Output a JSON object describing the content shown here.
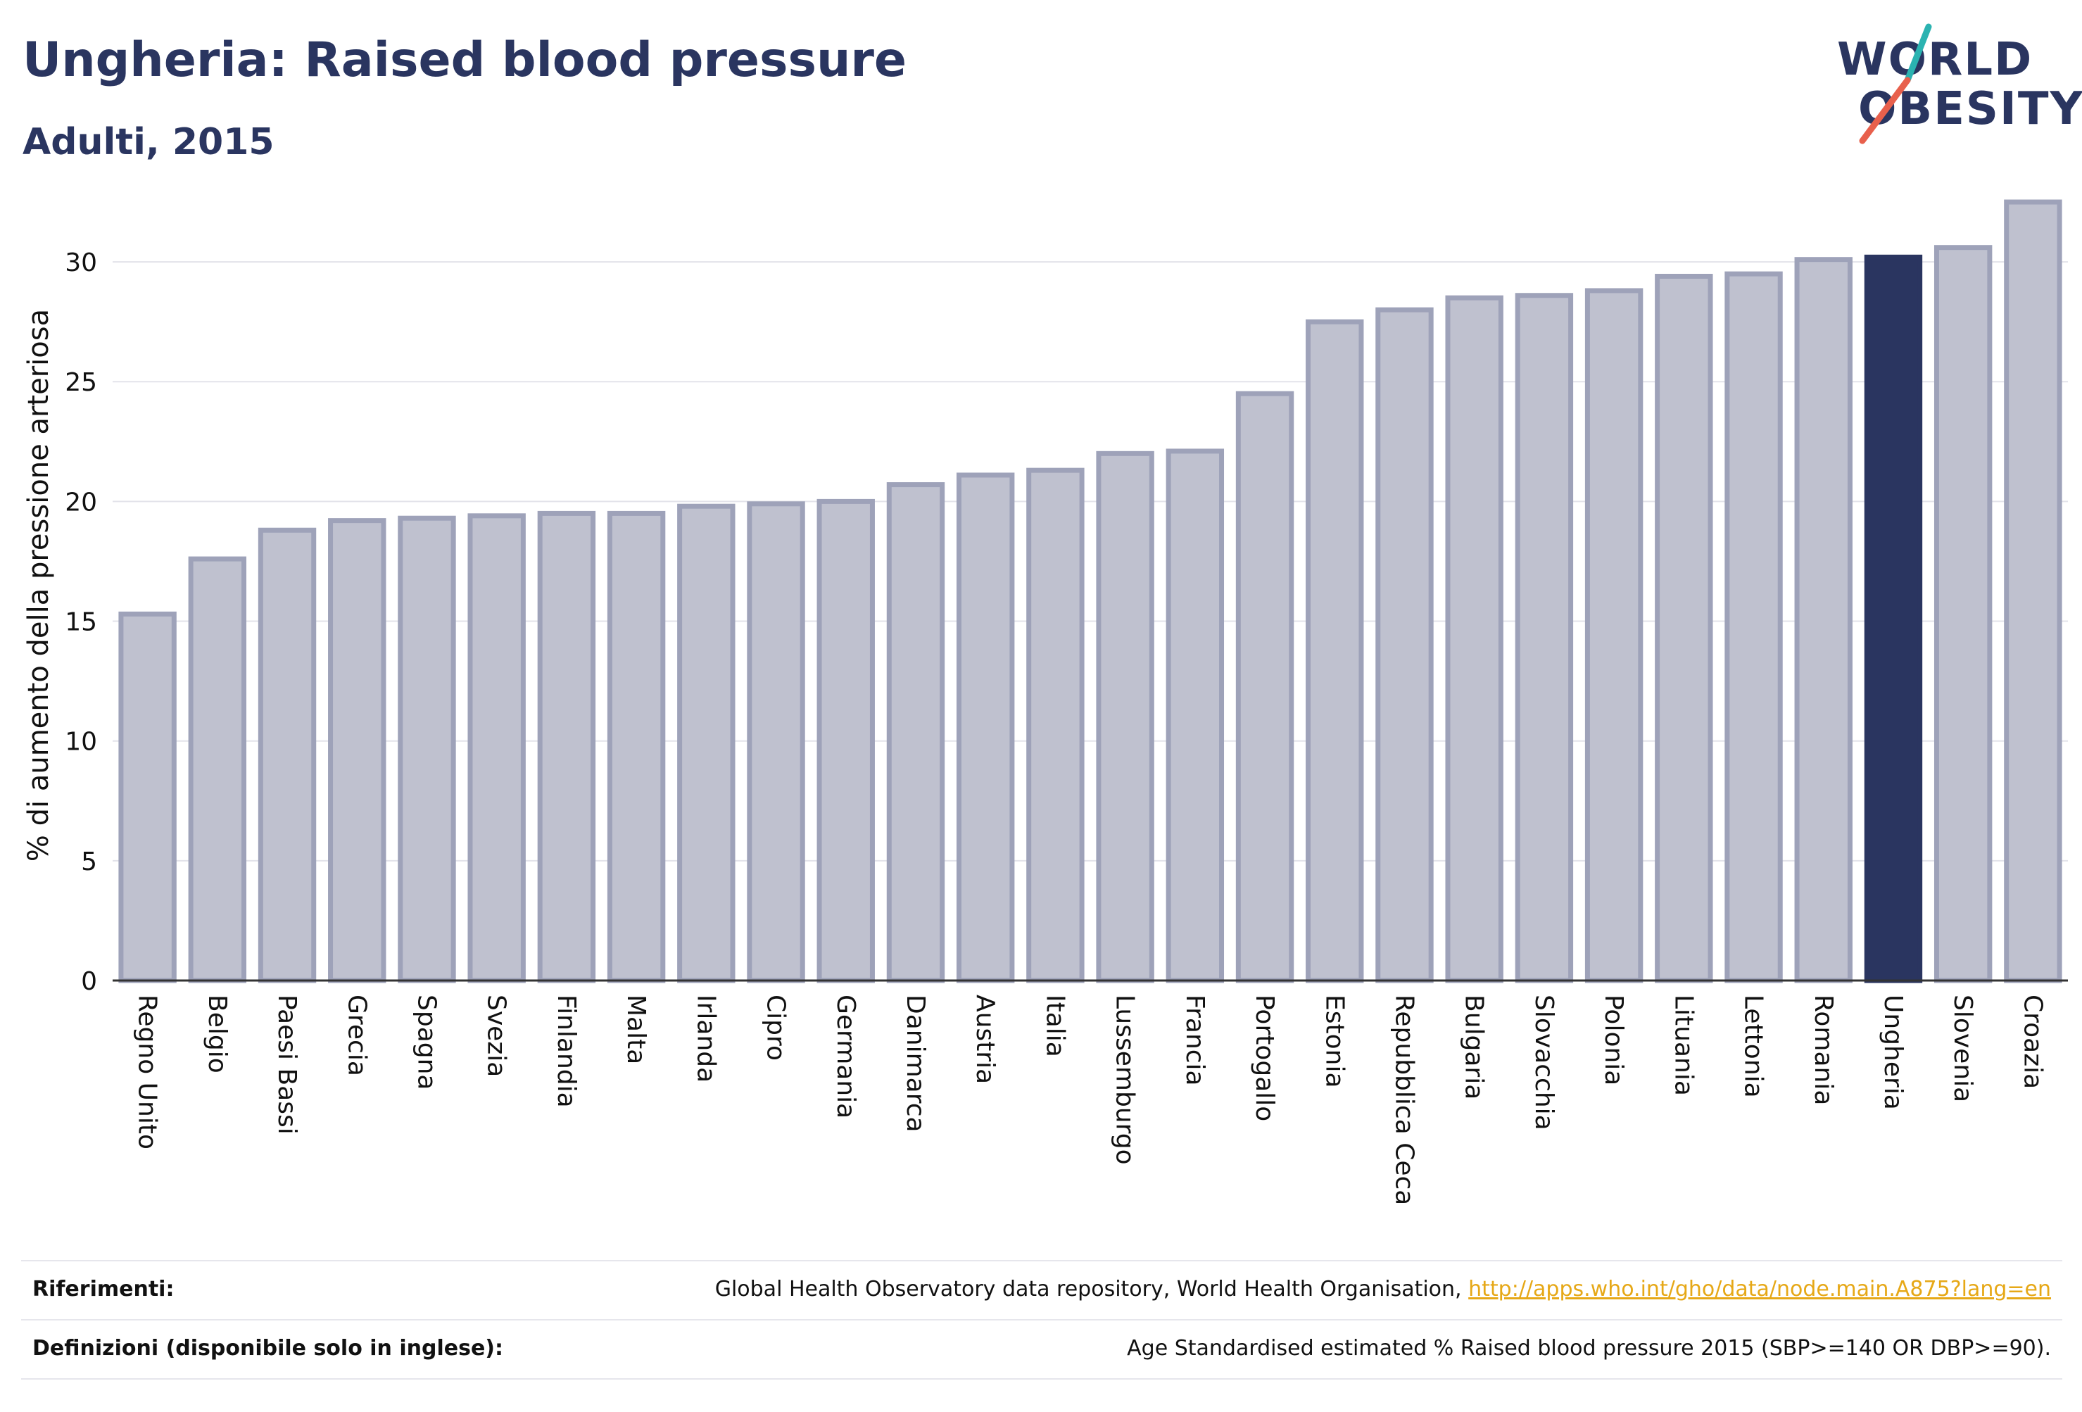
{
  "header": {
    "title": "Ungheria: Raised blood pressure",
    "subtitle": "Adulti, 2015"
  },
  "logo": {
    "line1": "WORLD",
    "line2": "OBESITY",
    "colors": {
      "text": "#2a3560",
      "slash_top": "#2bb3b1",
      "slash_bottom": "#e8604c"
    }
  },
  "chart_data": {
    "type": "bar",
    "ylabel": "% di aumento della pressione arteriosa",
    "xlabel": "",
    "ylim": [
      0,
      33
    ],
    "yticks": [
      0,
      5,
      10,
      15,
      20,
      25,
      30
    ],
    "grid": true,
    "highlight": "Ungheria",
    "colors": {
      "bar": "#bfc1cf",
      "bar_edge": "#9ea2b9",
      "highlight": "#2a3560",
      "grid": "#e3e3ea"
    },
    "categories": [
      "Regno Unito",
      "Belgio",
      "Paesi Bassi",
      "Grecia",
      "Spagna",
      "Svezia",
      "Finlandia",
      "Malta",
      "Irlanda",
      "Cipro",
      "Germania",
      "Danimarca",
      "Austria",
      "Italia",
      "Lussemburgo",
      "Francia",
      "Portogallo",
      "Estonia",
      "Repubblica Ceca",
      "Bulgaria",
      "Slovacchia",
      "Polonia",
      "Lituania",
      "Lettonia",
      "Romania",
      "Ungheria",
      "Slovenia",
      "Croazia"
    ],
    "values": [
      15.3,
      17.6,
      18.8,
      19.2,
      19.3,
      19.4,
      19.5,
      19.5,
      19.8,
      19.9,
      20.0,
      20.7,
      21.1,
      21.3,
      22.0,
      22.1,
      24.5,
      27.5,
      28.0,
      28.5,
      28.6,
      28.8,
      29.4,
      29.5,
      30.1,
      30.2,
      30.6,
      32.5
    ]
  },
  "footer": {
    "references_label": "Riferimenti:",
    "references_text": "Global Health Observatory data repository, World Health Organisation,",
    "references_link": "http://apps.who.int/gho/data/node.main.A875?lang=en",
    "definitions_label": "Definizioni (disponibile solo in inglese):",
    "definitions_text": "Age Standardised estimated % Raised blood pressure 2015 (SBP>=140 OR DBP>=90)."
  }
}
